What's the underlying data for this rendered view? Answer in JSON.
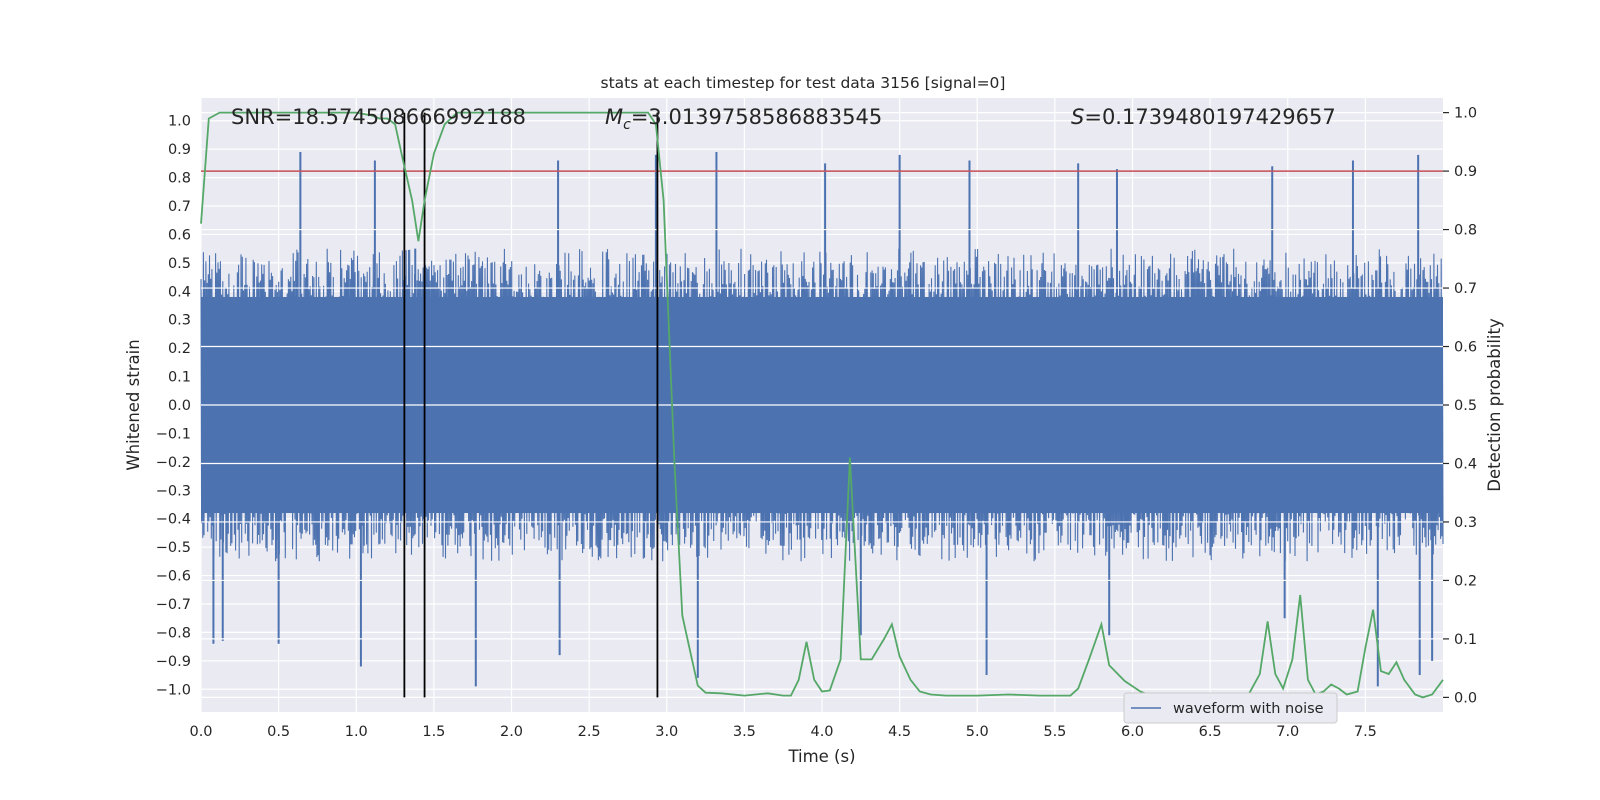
{
  "chart_data": {
    "type": "line",
    "title": "stats at each timestep for test data 3156 [signal=0]",
    "xlabel": "Time (s)",
    "ylabel_left": "Whitened strain",
    "ylabel_right": "Detection probability",
    "xlim": [
      0.0,
      8.0
    ],
    "ylim_left": [
      -1.08,
      1.08
    ],
    "ylim_right": [
      -0.025,
      1.025
    ],
    "x_ticks": [
      "0.0",
      "0.5",
      "1.0",
      "1.5",
      "2.0",
      "2.5",
      "3.0",
      "3.5",
      "4.0",
      "4.5",
      "5.0",
      "5.5",
      "6.0",
      "6.5",
      "7.0",
      "7.5"
    ],
    "x_tick_values": [
      0,
      0.5,
      1,
      1.5,
      2,
      2.5,
      3,
      3.5,
      4,
      4.5,
      5,
      5.5,
      6,
      6.5,
      7,
      7.5
    ],
    "y_ticks_left": [
      "1.0",
      "0.9",
      "0.8",
      "0.7",
      "0.6",
      "0.5",
      "0.4",
      "0.3",
      "0.2",
      "0.1",
      "0.0",
      "−0.1",
      "−0.2",
      "−0.3",
      "−0.4",
      "−0.5",
      "−0.6",
      "−0.7",
      "−0.8",
      "−0.9",
      "−1.0"
    ],
    "y_tick_values_left": [
      1.0,
      0.9,
      0.8,
      0.7,
      0.6,
      0.5,
      0.4,
      0.3,
      0.2,
      0.1,
      0.0,
      -0.1,
      -0.2,
      -0.3,
      -0.4,
      -0.5,
      -0.6,
      -0.7,
      -0.8,
      -0.9,
      -1.0
    ],
    "y_ticks_right": [
      "1.0",
      "0.9",
      "0.8",
      "0.7",
      "0.6",
      "0.5",
      "0.4",
      "0.3",
      "0.2",
      "0.1",
      "0.0"
    ],
    "y_tick_values_right": [
      1.0,
      0.9,
      0.8,
      0.7,
      0.6,
      0.5,
      0.4,
      0.3,
      0.2,
      0.1,
      0.0
    ],
    "annotations": {
      "snr": "SNR=18.574508666992188",
      "mc_symbol": "M",
      "mc_sub": "c",
      "mc_value": "=3.0139758586883545",
      "s_symbol": "S",
      "s_value": "=0.1739480197429657"
    },
    "threshold_right": 0.9,
    "vertical_markers_x": [
      1.31,
      1.44,
      2.94
    ],
    "legend": {
      "label": "waveform with noise",
      "location": "lower-right"
    },
    "series": [
      {
        "name": "waveform with noise",
        "axis": "left",
        "sample_count": 2048,
        "x_range": [
          0.0,
          8.0
        ],
        "core_band": [
          -0.38,
          0.38
        ],
        "typical_envelope": [
          -0.55,
          0.55
        ],
        "peaks_positive": [
          [
            0.64,
            0.89
          ],
          [
            1.12,
            0.86
          ],
          [
            1.38,
            0.55
          ],
          [
            2.3,
            0.86
          ],
          [
            2.93,
            0.88
          ],
          [
            3.32,
            0.89
          ],
          [
            4.02,
            0.85
          ],
          [
            4.5,
            0.88
          ],
          [
            4.95,
            0.86
          ],
          [
            5.65,
            0.85
          ],
          [
            5.9,
            0.83
          ],
          [
            6.9,
            0.84
          ],
          [
            7.42,
            0.86
          ],
          [
            7.84,
            0.88
          ]
        ],
        "peaks_negative": [
          [
            0.08,
            -0.84
          ],
          [
            0.14,
            -0.83
          ],
          [
            0.5,
            -0.84
          ],
          [
            1.03,
            -0.92
          ],
          [
            1.77,
            -0.99
          ],
          [
            2.31,
            -0.88
          ],
          [
            3.2,
            -0.96
          ],
          [
            4.25,
            -0.81
          ],
          [
            5.06,
            -0.95
          ],
          [
            5.85,
            -0.81
          ],
          [
            6.98,
            -0.75
          ],
          [
            7.58,
            -0.99
          ],
          [
            7.85,
            -0.95
          ],
          [
            7.93,
            -0.9
          ]
        ]
      },
      {
        "name": "detection probability",
        "axis": "right",
        "x": [
          0.0,
          0.05,
          0.12,
          0.2,
          0.4,
          0.6,
          0.8,
          1.0,
          1.1,
          1.15,
          1.2,
          1.25,
          1.3,
          1.36,
          1.4,
          1.44,
          1.5,
          1.57,
          1.65,
          1.7,
          1.8,
          2.0,
          2.2,
          2.4,
          2.6,
          2.8,
          2.88,
          2.93,
          2.98,
          3.05,
          3.1,
          3.15,
          3.2,
          3.25,
          3.35,
          3.5,
          3.65,
          3.75,
          3.8,
          3.85,
          3.9,
          3.95,
          4.0,
          4.05,
          4.12,
          4.18,
          4.25,
          4.32,
          4.4,
          4.45,
          4.5,
          4.57,
          4.63,
          4.7,
          4.8,
          5.0,
          5.2,
          5.4,
          5.6,
          5.65,
          5.72,
          5.8,
          5.85,
          5.95,
          6.05,
          6.1,
          6.2,
          6.5,
          6.7,
          6.75,
          6.82,
          6.87,
          6.92,
          6.97,
          7.03,
          7.08,
          7.13,
          7.18,
          7.23,
          7.28,
          7.33,
          7.38,
          7.45,
          7.5,
          7.55,
          7.6,
          7.65,
          7.7,
          7.75,
          7.82,
          7.87,
          7.93,
          8.0
        ],
        "y": [
          0.81,
          0.99,
          1.0,
          1.0,
          1.0,
          1.0,
          1.0,
          1.0,
          0.995,
          0.99,
          0.99,
          0.98,
          0.92,
          0.85,
          0.78,
          0.85,
          0.93,
          0.98,
          1.0,
          1.0,
          1.0,
          1.0,
          1.0,
          1.0,
          1.0,
          1.0,
          1.0,
          0.98,
          0.85,
          0.4,
          0.14,
          0.08,
          0.02,
          0.008,
          0.007,
          0.003,
          0.007,
          0.003,
          0.003,
          0.03,
          0.095,
          0.03,
          0.01,
          0.012,
          0.065,
          0.41,
          0.065,
          0.065,
          0.1,
          0.125,
          0.07,
          0.03,
          0.01,
          0.005,
          0.003,
          0.003,
          0.005,
          0.003,
          0.003,
          0.015,
          0.065,
          0.125,
          0.055,
          0.028,
          0.01,
          0.005,
          0.003,
          0.003,
          0.003,
          0.006,
          0.04,
          0.13,
          0.04,
          0.015,
          0.065,
          0.175,
          0.03,
          0.005,
          0.01,
          0.022,
          0.015,
          0.005,
          0.01,
          0.085,
          0.15,
          0.045,
          0.04,
          0.06,
          0.03,
          0.005,
          0.0,
          0.005,
          0.03
        ]
      }
    ]
  }
}
